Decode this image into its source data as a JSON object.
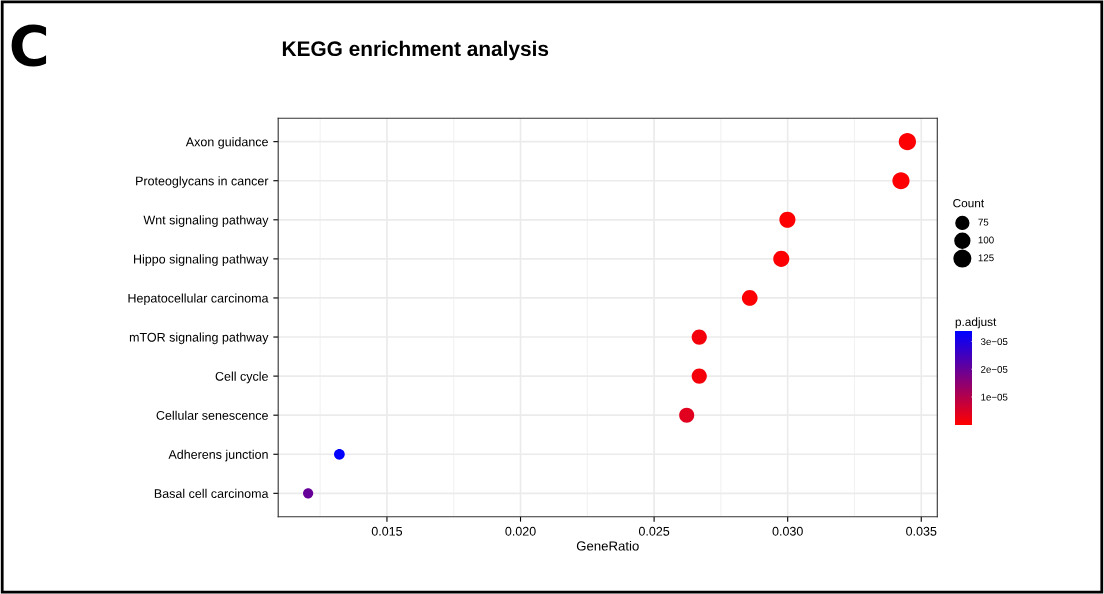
{
  "chart_data": {
    "type": "bubble",
    "title": "KEGG enrichment analysis",
    "annotations": [
      "C"
    ],
    "xlabel": "GeneRatio",
    "legend_title": "Count",
    "clabel": "p.adjust",
    "categories": [
      "Axon guidance",
      "Proteoglycans in cancer",
      "Wnt signaling pathway",
      "Hippo signaling pathway",
      "Hepatocellular carcinoma",
      "mTOR signaling pathway",
      "Cell cycle",
      "Cellular senescence",
      "Adherens junction",
      "Basal cell carcinoma"
    ],
    "values": [
      0.03448,
      0.03424,
      0.02999,
      0.02976,
      0.02858,
      0.02669,
      0.02669,
      0.02622,
      0.01322,
      0.01205
    ],
    "sizes": [
      134,
      133,
      117,
      116,
      111,
      104,
      104,
      102,
      52,
      47
    ],
    "size_legend": [
      {
        "value": 75,
        "label": "75"
      },
      {
        "value": 100,
        "label": "100"
      },
      {
        "value": 125,
        "label": "125"
      }
    ],
    "orientation": "horizontal",
    "cvalues": [
      5e-07,
      5e-07,
      5e-07,
      5e-07,
      5e-07,
      1.5e-06,
      1.5e-06,
      4e-06,
      3.35e-05,
      2e-05
    ],
    "clim": [
      0,
      3.36e-05
    ],
    "cticks": [
      {
        "value": 1e-05,
        "label": "1e−05"
      },
      {
        "value": 2e-05,
        "label": "2e−05"
      },
      {
        "value": 3e-05,
        "label": "3e−05"
      }
    ],
    "xlim": [
      0.01093,
      0.0356
    ],
    "xticks": [
      {
        "value": 0.015,
        "label": "0.015"
      },
      {
        "value": 0.02,
        "label": "0.020"
      },
      {
        "value": 0.025,
        "label": "0.025"
      },
      {
        "value": 0.03,
        "label": "0.030"
      },
      {
        "value": 0.035,
        "label": "0.035"
      }
    ],
    "grid": true
  }
}
